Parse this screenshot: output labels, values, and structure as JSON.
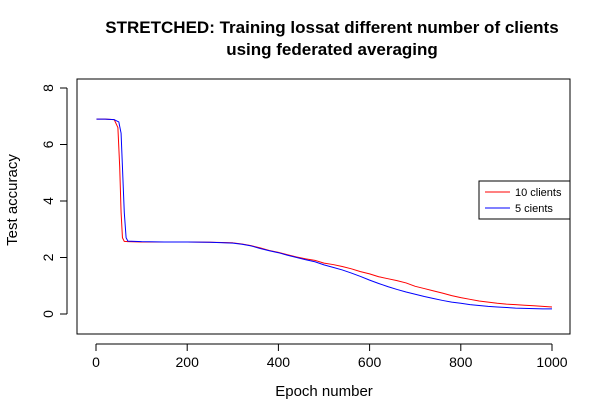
{
  "chart_data": {
    "type": "line",
    "title_line1": "STRETCHED: Training lossat different number of clients",
    "title_line2": "using federated averaging",
    "xlabel": "Epoch number",
    "ylabel": "Test accuracy",
    "xlim": [
      0,
      1000
    ],
    "ylim": [
      0,
      8
    ],
    "x_ticks": [
      0,
      200,
      400,
      600,
      800,
      1000
    ],
    "y_ticks": [
      0,
      2,
      4,
      6,
      8
    ],
    "x_tick_labels": [
      "0",
      "200",
      "400",
      "600",
      "800",
      "1000"
    ],
    "y_tick_labels": [
      "0",
      "2",
      "4",
      "6",
      "8"
    ],
    "grid": false,
    "legend_position": "right",
    "series": [
      {
        "name": "10 clients",
        "color": "#ff0000",
        "x": [
          1,
          20,
          40,
          48,
          52,
          55,
          58,
          62,
          70,
          100,
          150,
          200,
          250,
          300,
          320,
          340,
          360,
          380,
          400,
          420,
          440,
          460,
          480,
          500,
          520,
          540,
          560,
          580,
          600,
          620,
          640,
          660,
          680,
          700,
          720,
          740,
          760,
          780,
          800,
          820,
          840,
          860,
          880,
          900,
          920,
          940,
          960,
          980,
          1000
        ],
        "y": [
          6.9,
          6.9,
          6.88,
          6.6,
          5.2,
          3.6,
          2.7,
          2.57,
          2.56,
          2.55,
          2.55,
          2.55,
          2.54,
          2.52,
          2.48,
          2.42,
          2.34,
          2.25,
          2.18,
          2.1,
          2.02,
          1.95,
          1.9,
          1.8,
          1.75,
          1.68,
          1.6,
          1.5,
          1.42,
          1.32,
          1.25,
          1.18,
          1.1,
          0.98,
          0.9,
          0.82,
          0.74,
          0.65,
          0.58,
          0.52,
          0.46,
          0.42,
          0.38,
          0.35,
          0.33,
          0.31,
          0.29,
          0.27,
          0.25
        ]
      },
      {
        "name": "5 cients",
        "color": "#0000ff",
        "x": [
          1,
          20,
          40,
          50,
          55,
          58,
          62,
          66,
          70,
          100,
          150,
          200,
          250,
          300,
          320,
          340,
          360,
          380,
          400,
          420,
          440,
          460,
          480,
          500,
          520,
          540,
          560,
          580,
          600,
          620,
          640,
          660,
          680,
          700,
          720,
          740,
          760,
          780,
          800,
          820,
          840,
          860,
          880,
          900,
          920,
          940,
          960,
          980,
          1000
        ],
        "y": [
          6.9,
          6.9,
          6.88,
          6.8,
          6.4,
          5.2,
          3.6,
          2.7,
          2.58,
          2.56,
          2.55,
          2.55,
          2.54,
          2.51,
          2.47,
          2.41,
          2.32,
          2.24,
          2.17,
          2.08,
          2.0,
          1.92,
          1.85,
          1.74,
          1.65,
          1.56,
          1.45,
          1.33,
          1.2,
          1.08,
          0.97,
          0.87,
          0.78,
          0.7,
          0.62,
          0.55,
          0.48,
          0.42,
          0.38,
          0.33,
          0.3,
          0.27,
          0.25,
          0.23,
          0.21,
          0.2,
          0.19,
          0.18,
          0.18
        ]
      }
    ]
  }
}
